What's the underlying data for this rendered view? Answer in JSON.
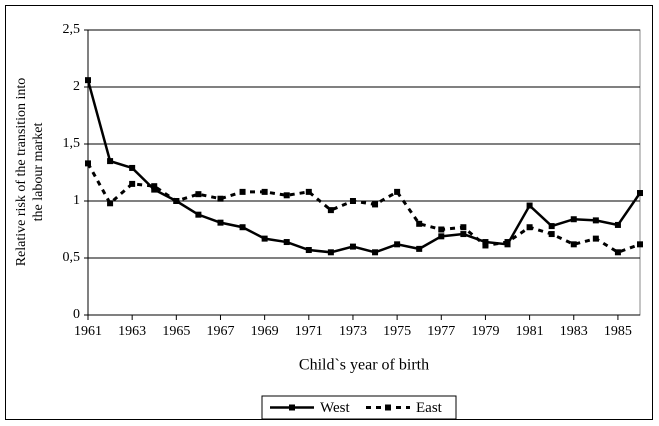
{
  "chart_data": {
    "type": "line",
    "ylabel": [
      "Relative risk of the transition into",
      "the labour market"
    ],
    "xlabel": "Child`s year of birth",
    "x": [
      1961,
      1962,
      1963,
      1964,
      1965,
      1966,
      1967,
      1968,
      1969,
      1970,
      1971,
      1972,
      1973,
      1974,
      1975,
      1976,
      1977,
      1978,
      1979,
      1980,
      1981,
      1982,
      1983,
      1984,
      1985,
      1986
    ],
    "series": [
      {
        "name": "West",
        "color": "#000000",
        "dash": false,
        "values": [
          2.06,
          1.35,
          1.29,
          1.1,
          1.0,
          0.88,
          0.81,
          0.77,
          0.67,
          0.64,
          0.57,
          0.55,
          0.6,
          0.55,
          0.62,
          0.58,
          0.69,
          0.71,
          0.64,
          0.62,
          0.96,
          0.78,
          0.84,
          0.83,
          0.79,
          1.07
        ]
      },
      {
        "name": "East",
        "color": "#000000",
        "dash": true,
        "values": [
          1.33,
          0.98,
          1.15,
          1.13,
          1.0,
          1.06,
          1.02,
          1.08,
          1.08,
          1.05,
          1.08,
          0.92,
          1.0,
          0.97,
          1.08,
          0.8,
          0.75,
          0.77,
          0.61,
          0.64,
          0.77,
          0.71,
          0.62,
          0.67,
          0.55,
          0.62
        ]
      }
    ],
    "xlim": [
      1961,
      1986
    ],
    "xticks": [
      1961,
      1963,
      1965,
      1967,
      1969,
      1971,
      1973,
      1975,
      1977,
      1979,
      1981,
      1983,
      1985
    ],
    "ylim": [
      0,
      2.5
    ],
    "yticks": [
      0,
      {
        "value": 0.5,
        "label": "0,5"
      },
      1,
      {
        "value": 1.5,
        "label": "1,5"
      },
      2,
      {
        "value": 2.5,
        "label": "2,5"
      }
    ],
    "grid": true,
    "legend": "bottom"
  }
}
